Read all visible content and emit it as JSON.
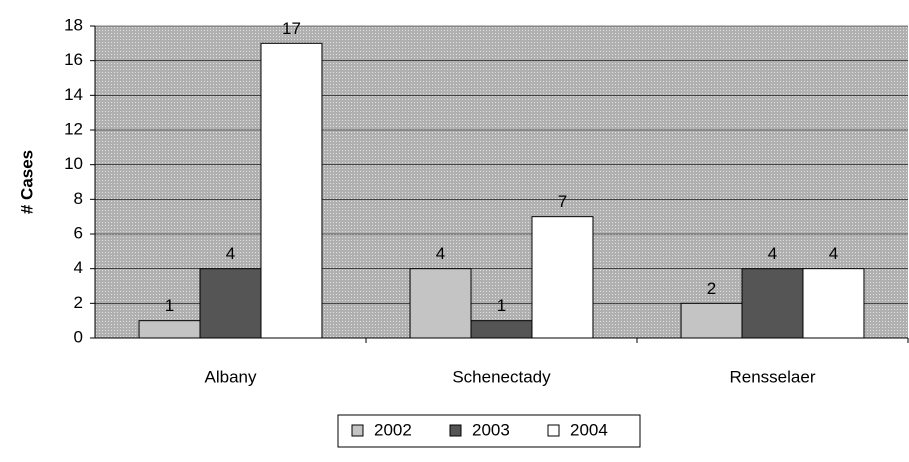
{
  "chart_data": {
    "type": "bar",
    "y_label": "# Cases",
    "categories": [
      "Albany",
      "Schenectady",
      "Rensselaer"
    ],
    "series": [
      {
        "name": "2002",
        "color": "#c4c4c4",
        "values": [
          1,
          4,
          2
        ]
      },
      {
        "name": "2003",
        "color": "#555555",
        "values": [
          4,
          1,
          4
        ]
      },
      {
        "name": "2004",
        "color": "#ffffff",
        "values": [
          17,
          7,
          4
        ]
      }
    ],
    "ylim": [
      0,
      18
    ],
    "yticks": [
      0,
      2,
      4,
      6,
      8,
      10,
      12,
      14,
      16,
      18
    ],
    "grid": true,
    "legend": "bottom"
  }
}
